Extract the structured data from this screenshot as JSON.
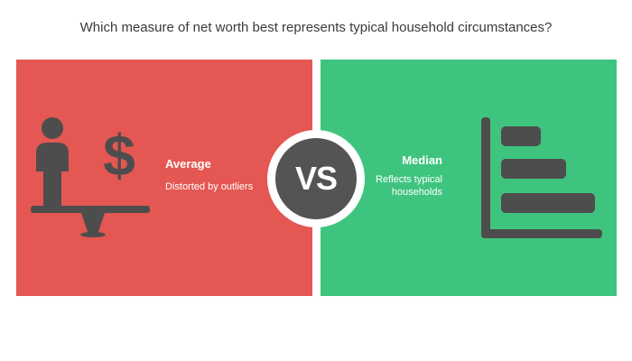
{
  "title": "Which measure of net worth best represents typical household circumstances?",
  "colors": {
    "left_panel": "#e45753",
    "right_panel": "#3fc47f",
    "icon": "#4d4d4d",
    "vs_circle": "#545454"
  },
  "left": {
    "heading": "Average",
    "description": "Distorted by outliers",
    "icon": "person-dollar-scale-icon"
  },
  "right": {
    "heading": "Median",
    "description": "Reflects typical households",
    "icon": "bar-chart-icon"
  },
  "vs_label": "VS"
}
